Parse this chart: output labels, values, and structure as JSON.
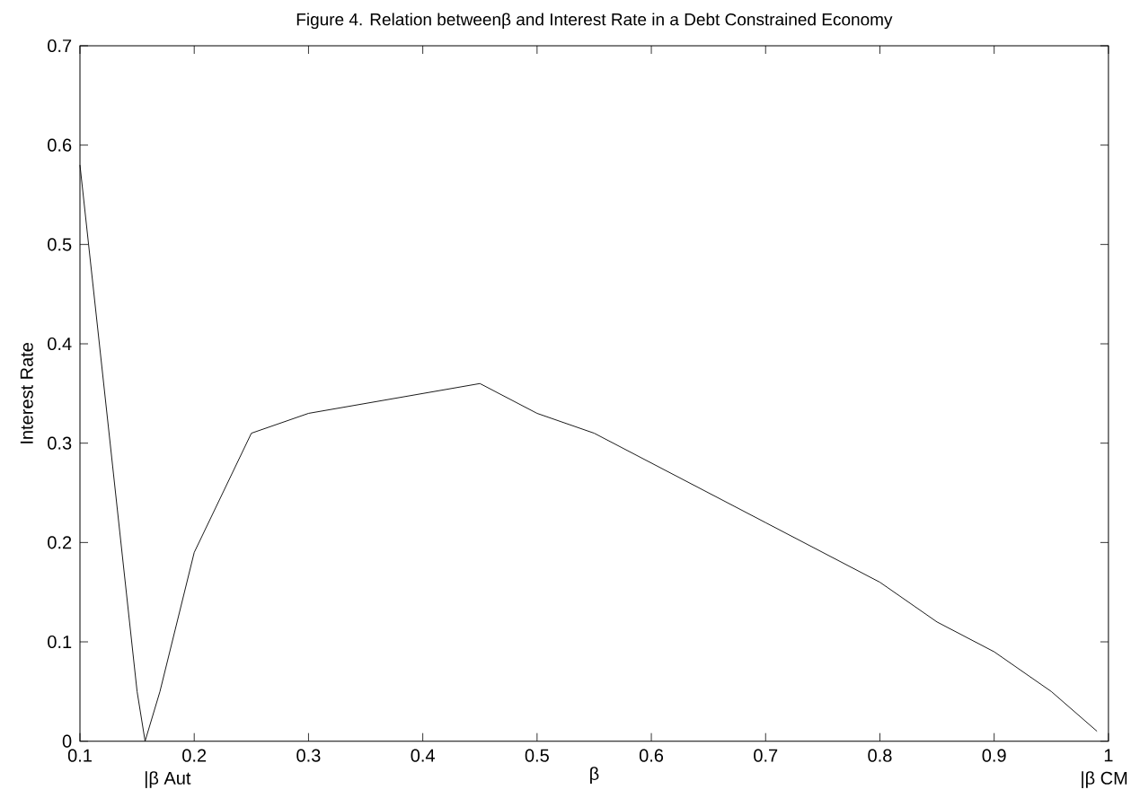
{
  "chart_data": {
    "type": "line",
    "title": "Figure 4. Relation betweenβ and Interest Rate in a Debt Constrained Economy",
    "xlabel": "β",
    "ylabel": "Interest Rate",
    "x": [
      0.1,
      0.15,
      0.157,
      0.17,
      0.2,
      0.25,
      0.3,
      0.45,
      0.5,
      0.55,
      0.6,
      0.7,
      0.8,
      0.85,
      0.9,
      0.95,
      0.99
    ],
    "series": [
      {
        "color": "#000000",
        "values": [
          0.58,
          0.05,
          0,
          0.05,
          0.19,
          0.31,
          0.33,
          0.36,
          0.33,
          0.31,
          0.28,
          0.22,
          0.16,
          0.12,
          0.09,
          0.05,
          0.01
        ]
      }
    ],
    "xlim": [
      0.1,
      1
    ],
    "ylim": [
      0,
      0.7
    ],
    "xticks": [
      0.1,
      0.2,
      0.3,
      0.4,
      0.5,
      0.6,
      0.7,
      0.8,
      0.9,
      1
    ],
    "yticks": [
      0,
      0.1,
      0.2,
      0.3,
      0.4,
      0.5,
      0.6,
      0.7
    ],
    "annotations": [
      "|β Aut",
      "|β CM"
    ],
    "grid": false,
    "marker": "none",
    "line_style": "solid"
  }
}
